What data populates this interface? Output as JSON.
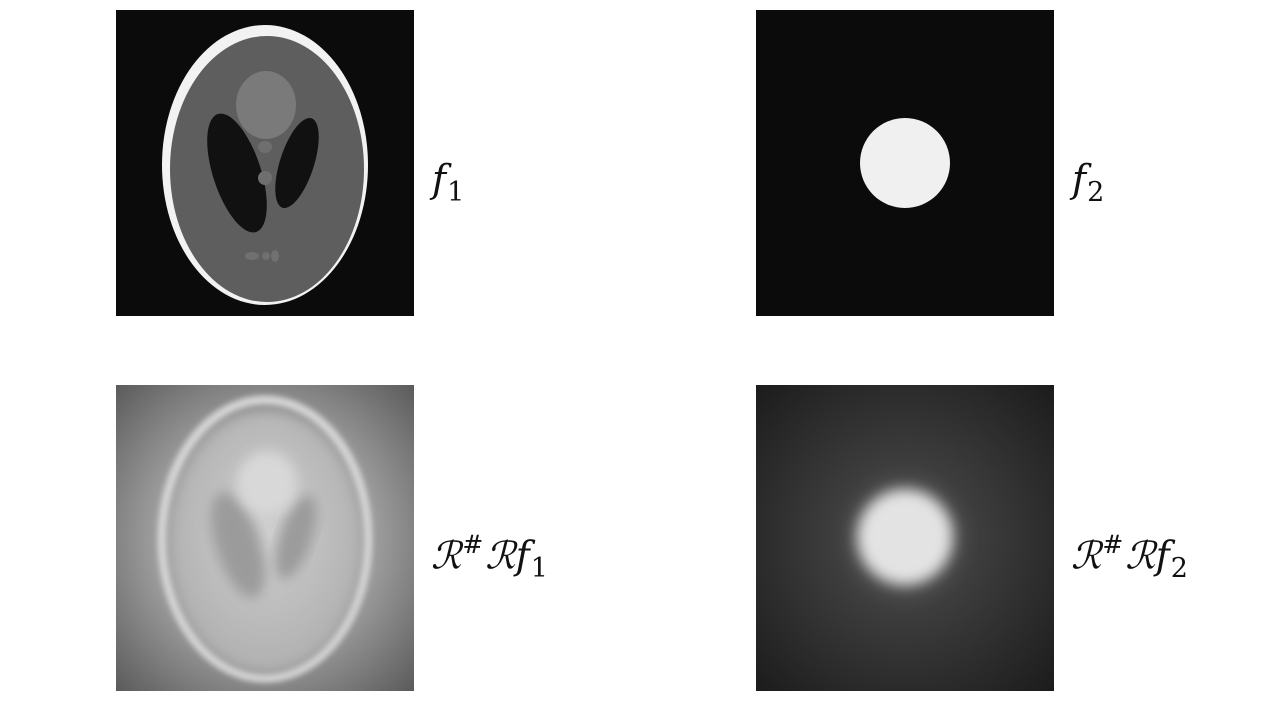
{
  "labels": {
    "f1": {
      "symbol": "f",
      "subscript": "1"
    },
    "f2": {
      "symbol": "f",
      "subscript": "2"
    },
    "bp1": {
      "operator": "ℛ",
      "superscript": "#",
      "operator2": "ℛ",
      "symbol": "f",
      "subscript": "1"
    },
    "bp2": {
      "operator": "ℛ",
      "superscript": "#",
      "operator2": "ℛ",
      "symbol": "f",
      "subscript": "2"
    }
  },
  "colors": {
    "background": "#ffffff",
    "image_background": "#0b0b0b",
    "phantom_shell": "#f2f2f2",
    "phantom_body": "#5e5e5e",
    "phantom_dark": "#111111",
    "disk": "#f0f0f0"
  }
}
